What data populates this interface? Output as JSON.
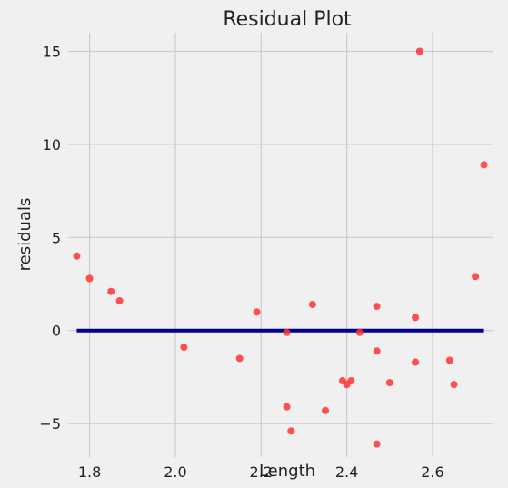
{
  "chart_data": {
    "type": "scatter",
    "title": "Residual Plot",
    "xlabel": "Length",
    "ylabel": "residuals",
    "xlim": [
      1.75,
      2.74
    ],
    "ylim": [
      -6.8,
      16.0
    ],
    "xticks": [
      1.8,
      2.0,
      2.2,
      2.4,
      2.6
    ],
    "xtick_labels": [
      "1.8",
      "2.0",
      "2.2",
      "2.4",
      "2.6"
    ],
    "yticks": [
      -5,
      0,
      5,
      10,
      15
    ],
    "ytick_labels": [
      "−5",
      "0",
      "5",
      "10",
      "15"
    ],
    "grid": true,
    "point_color": "#ff3333",
    "line_color": "#00008b",
    "zero_line": {
      "x_start": 1.77,
      "x_end": 2.72,
      "y": 0
    },
    "points": [
      {
        "x": 1.77,
        "y": 4.0
      },
      {
        "x": 1.8,
        "y": 2.8
      },
      {
        "x": 1.85,
        "y": 2.1
      },
      {
        "x": 1.87,
        "y": 1.6
      },
      {
        "x": 2.02,
        "y": -0.9
      },
      {
        "x": 2.15,
        "y": -1.5
      },
      {
        "x": 2.19,
        "y": 1.0
      },
      {
        "x": 2.26,
        "y": -0.1
      },
      {
        "x": 2.26,
        "y": -4.1
      },
      {
        "x": 2.27,
        "y": -5.4
      },
      {
        "x": 2.32,
        "y": 1.4
      },
      {
        "x": 2.35,
        "y": -4.3
      },
      {
        "x": 2.39,
        "y": -2.7
      },
      {
        "x": 2.4,
        "y": -2.9
      },
      {
        "x": 2.41,
        "y": -2.7
      },
      {
        "x": 2.43,
        "y": -0.1
      },
      {
        "x": 2.47,
        "y": 1.3
      },
      {
        "x": 2.47,
        "y": -1.1
      },
      {
        "x": 2.47,
        "y": -6.1
      },
      {
        "x": 2.5,
        "y": -2.8
      },
      {
        "x": 2.56,
        "y": 0.7
      },
      {
        "x": 2.56,
        "y": -1.7
      },
      {
        "x": 2.57,
        "y": 15.0
      },
      {
        "x": 2.64,
        "y": -1.6
      },
      {
        "x": 2.65,
        "y": -2.9
      },
      {
        "x": 2.7,
        "y": 2.9
      },
      {
        "x": 2.72,
        "y": 8.9
      }
    ]
  }
}
